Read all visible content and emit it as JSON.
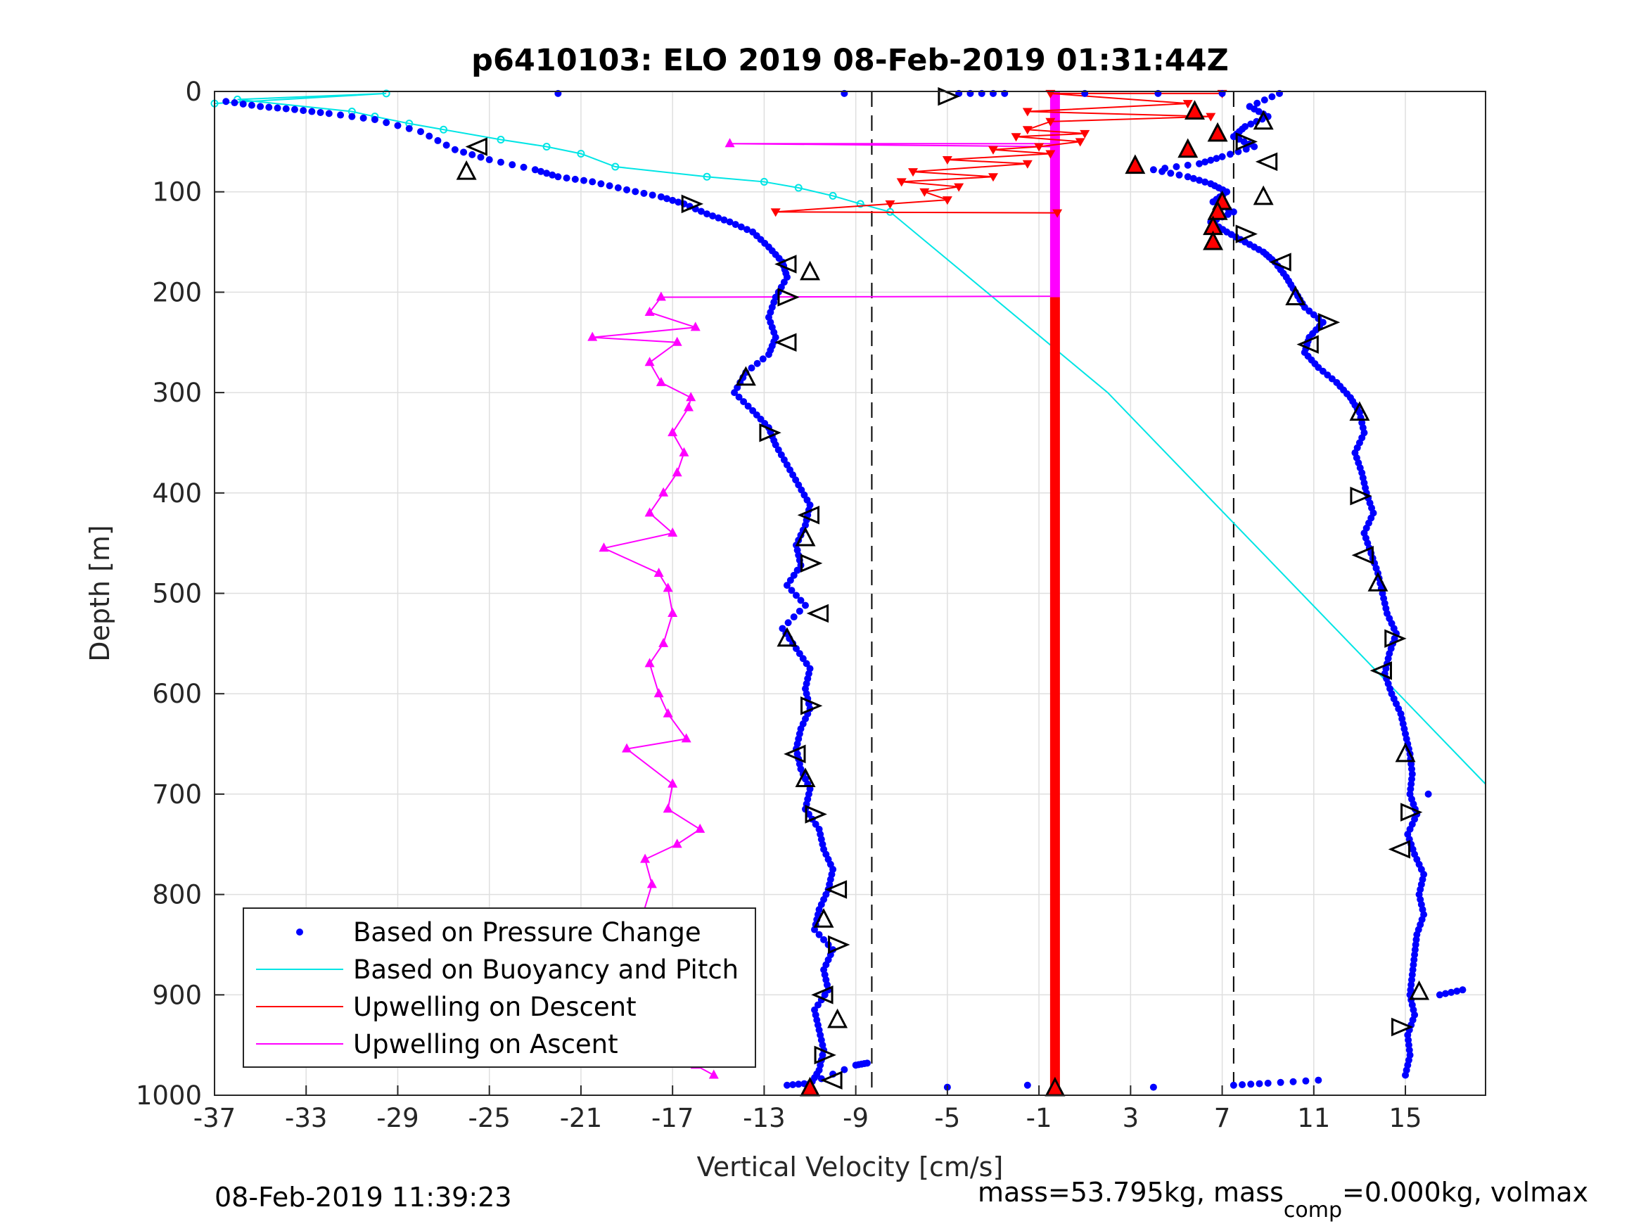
{
  "chart_data": {
    "type": "scatter",
    "title": "p6410103: ELO 2019 08-Feb-2019 01:31:44Z",
    "xlabel": "Vertical Velocity [cm/s]",
    "ylabel": "Depth [m]",
    "xlim": [
      -37,
      18.5
    ],
    "ylim": [
      0,
      1000
    ],
    "y_reversed": true,
    "grid": true,
    "x_ticks": [
      -37,
      -33,
      -29,
      -25,
      -21,
      -17,
      -13,
      -9,
      -5,
      -1,
      3,
      7,
      11,
      15
    ],
    "y_ticks": [
      0,
      100,
      200,
      300,
      400,
      500,
      600,
      700,
      800,
      900,
      1000
    ],
    "threshold_lines_x": [
      -8.3,
      7.5
    ],
    "legend_position": "bottom-left",
    "legend": [
      {
        "label": "Based on Pressure Change",
        "color": "#0000ff",
        "style": "dot"
      },
      {
        "label": "Based on Buoyancy and Pitch",
        "color": "#00e5e5",
        "style": "line"
      },
      {
        "label": "Upwelling on Descent",
        "color": "#ff0000",
        "style": "line"
      },
      {
        "label": "Upwelling on Ascent",
        "color": "#ff00ff",
        "style": "line"
      }
    ],
    "series": [
      {
        "name": "Based on Pressure Change",
        "color": "#0000ff",
        "points": [
          [
            -36.5,
            10
          ],
          [
            -35.0,
            15
          ],
          [
            -33.5,
            18
          ],
          [
            -32.0,
            22
          ],
          [
            -30.0,
            28
          ],
          [
            -28.0,
            40
          ],
          [
            -26.5,
            58
          ],
          [
            -25.0,
            68
          ],
          [
            -23.0,
            78
          ],
          [
            -22.0,
            85
          ],
          [
            -20.5,
            90
          ],
          [
            -19.0,
            98
          ],
          [
            -17.5,
            105
          ],
          [
            -16.5,
            112
          ],
          [
            -15.5,
            122
          ],
          [
            -14.5,
            130
          ],
          [
            -13.5,
            140
          ],
          [
            -12.8,
            155
          ],
          [
            -12.2,
            170
          ],
          [
            -12.0,
            185
          ],
          [
            -12.5,
            205
          ],
          [
            -12.8,
            225
          ],
          [
            -12.5,
            245
          ],
          [
            -12.8,
            262
          ],
          [
            -13.8,
            280
          ],
          [
            -14.3,
            300
          ],
          [
            -13.5,
            318
          ],
          [
            -12.8,
            335
          ],
          [
            -12.5,
            352
          ],
          [
            -12.0,
            372
          ],
          [
            -11.5,
            392
          ],
          [
            -11.0,
            412
          ],
          [
            -11.2,
            432
          ],
          [
            -11.6,
            452
          ],
          [
            -11.4,
            472
          ],
          [
            -12.0,
            492
          ],
          [
            -11.2,
            512
          ],
          [
            -12.2,
            535
          ],
          [
            -11.6,
            555
          ],
          [
            -11.0,
            575
          ],
          [
            -11.2,
            595
          ],
          [
            -11.0,
            615
          ],
          [
            -11.4,
            635
          ],
          [
            -11.6,
            655
          ],
          [
            -11.4,
            675
          ],
          [
            -11.0,
            695
          ],
          [
            -11.2,
            715
          ],
          [
            -10.6,
            735
          ],
          [
            -10.4,
            755
          ],
          [
            -10.0,
            775
          ],
          [
            -10.2,
            795
          ],
          [
            -10.6,
            815
          ],
          [
            -10.8,
            835
          ],
          [
            -10.0,
            855
          ],
          [
            -10.4,
            875
          ],
          [
            -10.2,
            895
          ],
          [
            -10.8,
            915
          ],
          [
            -10.6,
            935
          ],
          [
            -10.4,
            955
          ],
          [
            -10.6,
            975
          ],
          [
            -11.0,
            990
          ],
          [
            -22.0,
            2
          ],
          [
            -9.5,
            2
          ],
          [
            -4.5,
            2
          ],
          [
            -2.5,
            2
          ],
          [
            1.0,
            2
          ],
          [
            4.2,
            2
          ],
          [
            7.0,
            2
          ],
          [
            9.5,
            2
          ],
          [
            8.2,
            15
          ],
          [
            9.0,
            25
          ],
          [
            8.0,
            35
          ],
          [
            7.5,
            45
          ],
          [
            8.4,
            55
          ],
          [
            7.0,
            65
          ],
          [
            6.0,
            72
          ],
          [
            4.0,
            78
          ],
          [
            5.5,
            85
          ],
          [
            6.5,
            92
          ],
          [
            7.2,
            100
          ],
          [
            6.6,
            110
          ],
          [
            7.5,
            120
          ],
          [
            6.5,
            130
          ],
          [
            7.2,
            140
          ],
          [
            8.0,
            150
          ],
          [
            8.8,
            160
          ],
          [
            9.3,
            170
          ],
          [
            9.8,
            185
          ],
          [
            10.2,
            200
          ],
          [
            10.6,
            215
          ],
          [
            11.4,
            230
          ],
          [
            10.8,
            245
          ],
          [
            10.6,
            260
          ],
          [
            11.2,
            275
          ],
          [
            12.0,
            290
          ],
          [
            12.6,
            305
          ],
          [
            13.0,
            320
          ],
          [
            13.2,
            340
          ],
          [
            12.8,
            360
          ],
          [
            13.1,
            380
          ],
          [
            13.3,
            400
          ],
          [
            13.6,
            420
          ],
          [
            13.2,
            440
          ],
          [
            13.5,
            460
          ],
          [
            13.8,
            480
          ],
          [
            14.0,
            500
          ],
          [
            14.2,
            520
          ],
          [
            14.6,
            540
          ],
          [
            14.3,
            560
          ],
          [
            14.1,
            580
          ],
          [
            14.4,
            600
          ],
          [
            14.8,
            620
          ],
          [
            15.0,
            640
          ],
          [
            15.2,
            660
          ],
          [
            15.3,
            680
          ],
          [
            15.2,
            700
          ],
          [
            15.5,
            720
          ],
          [
            15.1,
            740
          ],
          [
            15.4,
            760
          ],
          [
            15.8,
            780
          ],
          [
            15.6,
            800
          ],
          [
            15.8,
            820
          ],
          [
            15.5,
            840
          ],
          [
            15.4,
            860
          ],
          [
            15.3,
            880
          ],
          [
            15.2,
            900
          ],
          [
            15.4,
            920
          ],
          [
            15.1,
            940
          ],
          [
            15.2,
            960
          ],
          [
            15.0,
            980
          ],
          [
            -5.0,
            992
          ],
          [
            -1.5,
            990
          ],
          [
            4.0,
            992
          ],
          [
            7.5,
            990
          ],
          [
            9.0,
            988
          ],
          [
            11.2,
            985
          ],
          [
            -12.0,
            990
          ],
          [
            -11.0,
            988
          ],
          [
            -9.0,
            970
          ],
          [
            -8.5,
            968
          ],
          [
            17.5,
            895
          ],
          [
            16.5,
            900
          ],
          [
            16.0,
            700
          ]
        ]
      },
      {
        "name": "Based on Buoyancy and Pitch",
        "color": "#00e5e5",
        "points": [
          [
            -37.0,
            12
          ],
          [
            -29.5,
            2
          ],
          [
            -36.0,
            8
          ],
          [
            -31.0,
            20
          ],
          [
            -30.0,
            25
          ],
          [
            -28.5,
            32
          ],
          [
            -27.0,
            38
          ],
          [
            -24.5,
            48
          ],
          [
            -22.5,
            55
          ],
          [
            -21.0,
            62
          ],
          [
            -19.5,
            75
          ],
          [
            -15.5,
            85
          ],
          [
            -13.0,
            90
          ],
          [
            -11.5,
            96
          ],
          [
            -10.0,
            104
          ],
          [
            -8.8,
            112
          ],
          [
            -7.5,
            120
          ],
          [
            2.0,
            300
          ],
          [
            18.5,
            690
          ]
        ]
      },
      {
        "name": "Upwelling on Descent",
        "color": "#ff0000",
        "points": [
          [
            7.0,
            2
          ],
          [
            -0.5,
            2
          ],
          [
            5.5,
            12
          ],
          [
            -1.5,
            20
          ],
          [
            6.5,
            25
          ],
          [
            -0.5,
            30
          ],
          [
            -1.5,
            38
          ],
          [
            1.0,
            42
          ],
          [
            -2.0,
            45
          ],
          [
            0.8,
            50
          ],
          [
            -1.0,
            55
          ],
          [
            -3.0,
            58
          ],
          [
            -0.5,
            62
          ],
          [
            -5.0,
            68
          ],
          [
            -1.5,
            72
          ],
          [
            -6.5,
            80
          ],
          [
            -3.0,
            85
          ],
          [
            -7.0,
            90
          ],
          [
            -4.5,
            95
          ],
          [
            -6.0,
            100
          ],
          [
            -5.0,
            108
          ],
          [
            -7.5,
            112
          ],
          [
            -12.5,
            120
          ],
          [
            -0.2,
            121
          ]
        ]
      },
      {
        "name": "Upwelling on Ascent",
        "color": "#ff00ff",
        "points": [
          [
            -15.2,
            980
          ],
          [
            -16.0,
            970
          ],
          [
            -15.5,
            950
          ],
          [
            -17.0,
            940
          ],
          [
            -15.8,
            930
          ],
          [
            -18.5,
            910
          ],
          [
            -17.5,
            895
          ],
          [
            -18.0,
            870
          ],
          [
            -17.8,
            850
          ],
          [
            -18.3,
            820
          ],
          [
            -17.9,
            790
          ],
          [
            -18.2,
            765
          ],
          [
            -16.8,
            750
          ],
          [
            -15.8,
            735
          ],
          [
            -17.2,
            715
          ],
          [
            -17.0,
            690
          ],
          [
            -19.0,
            655
          ],
          [
            -16.4,
            645
          ],
          [
            -17.2,
            620
          ],
          [
            -17.6,
            600
          ],
          [
            -18.0,
            570
          ],
          [
            -17.4,
            550
          ],
          [
            -17.0,
            520
          ],
          [
            -17.2,
            495
          ],
          [
            -17.6,
            480
          ],
          [
            -20.0,
            455
          ],
          [
            -17.0,
            440
          ],
          [
            -18.0,
            420
          ],
          [
            -17.4,
            400
          ],
          [
            -16.8,
            380
          ],
          [
            -16.5,
            360
          ],
          [
            -17.0,
            340
          ],
          [
            -16.3,
            315
          ],
          [
            -16.2,
            305
          ],
          [
            -17.5,
            290
          ],
          [
            -18.0,
            270
          ],
          [
            -16.8,
            250
          ],
          [
            -20.5,
            245
          ],
          [
            -16.0,
            235
          ],
          [
            -18.0,
            220
          ],
          [
            -17.5,
            205
          ],
          [
            -0.3,
            204
          ],
          [
            -0.3,
            55
          ],
          [
            -14.5,
            52
          ],
          [
            -0.3,
            52
          ]
        ]
      },
      {
        "name": "markers",
        "color": "#000000",
        "points": [
          [
            -5.0,
            5
          ],
          [
            -25.5,
            55
          ],
          [
            -26.0,
            80
          ],
          [
            -16.2,
            112
          ],
          [
            -12.0,
            172
          ],
          [
            -11.0,
            180
          ],
          [
            -12.0,
            205
          ],
          [
            -12.0,
            250
          ],
          [
            -13.8,
            285
          ],
          [
            -12.8,
            340
          ],
          [
            -11.0,
            422
          ],
          [
            -11.2,
            445
          ],
          [
            -11.0,
            470
          ],
          [
            -10.6,
            520
          ],
          [
            -12.0,
            545
          ],
          [
            -11.0,
            612
          ],
          [
            -11.6,
            660
          ],
          [
            -11.2,
            685
          ],
          [
            -10.8,
            720
          ],
          [
            -9.8,
            795
          ],
          [
            -10.4,
            825
          ],
          [
            -9.8,
            850
          ],
          [
            -10.4,
            900
          ],
          [
            -9.8,
            925
          ],
          [
            -10.4,
            960
          ],
          [
            -10.0,
            985
          ],
          [
            8.8,
            30
          ],
          [
            8.0,
            50
          ],
          [
            9.0,
            70
          ],
          [
            8.8,
            105
          ],
          [
            8.0,
            142
          ],
          [
            9.6,
            170
          ],
          [
            10.2,
            205
          ],
          [
            11.6,
            230
          ],
          [
            10.8,
            252
          ],
          [
            13.0,
            320
          ],
          [
            13.0,
            403
          ],
          [
            13.2,
            462
          ],
          [
            13.8,
            490
          ],
          [
            14.5,
            545
          ],
          [
            14.0,
            577
          ],
          [
            15.0,
            660
          ],
          [
            15.2,
            718
          ],
          [
            14.8,
            755
          ],
          [
            15.6,
            897
          ],
          [
            14.8,
            932
          ]
        ]
      },
      {
        "name": "red triangles",
        "color": "#ff0000",
        "points": [
          [
            5.8,
            20
          ],
          [
            6.8,
            42
          ],
          [
            5.5,
            58
          ],
          [
            3.2,
            74
          ],
          [
            7.0,
            110
          ],
          [
            6.8,
            120
          ],
          [
            6.6,
            135
          ],
          [
            6.6,
            150
          ],
          [
            -11.0,
            993
          ],
          [
            -0.3,
            993
          ]
        ]
      }
    ],
    "footer_left": "08-Feb-2019 11:39:23",
    "footer_right_parts": [
      "mass=53.795kg, mass",
      "comp",
      "=0.000kg, volmax"
    ]
  }
}
